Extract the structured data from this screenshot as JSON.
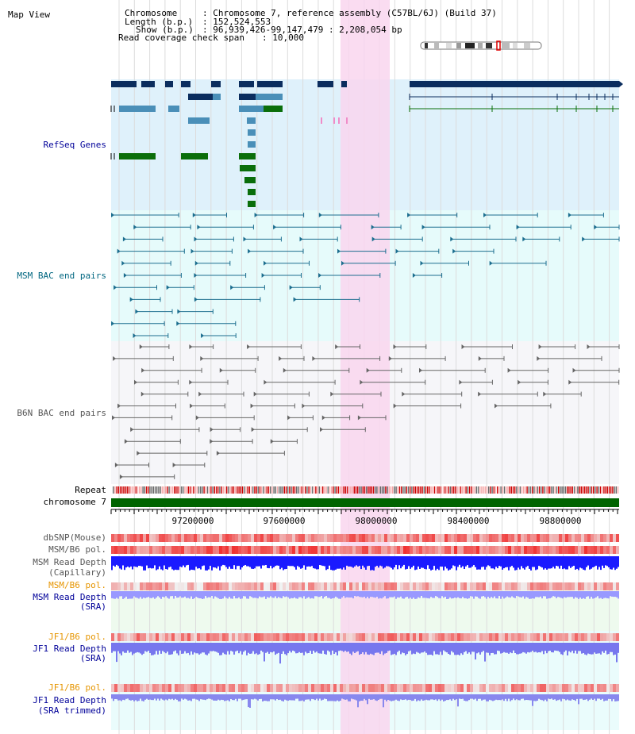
{
  "view_title": "Map View",
  "info": {
    "chromosome_label": "Chromosome",
    "chromosome_value": ": Chromosome 7, reference assembly (C57BL/6J) (Build 37)",
    "length_label": "Length (b.p.)",
    "length_value": ": 152,524,553",
    "show_label": "Show (b.p.)",
    "show_value": ": 96,939,426-99,147,479 : 2,208,054 bp",
    "coverage_label": "Read coverage check span",
    "coverage_value": ": 10,000"
  },
  "tracks": {
    "refseq": "RefSeq Genes",
    "msm_bac": "MSM BAC end pairs",
    "b6n_bac": "B6N BAC end pairs",
    "repeat": "Repeat",
    "chromosome": "chromosome 7",
    "dbsnp": "dbSNP(Mouse)",
    "msm_b6_pol": "MSM/B6 pol.",
    "msm_depth_cap_1": "MSM Read Depth",
    "msm_depth_cap_2": "(Capillary)",
    "msm_b6_pol_2": "MSM/B6 pol.",
    "msm_depth_sra_1": "MSM Read Depth",
    "msm_depth_sra_2": "(SRA)",
    "jf1_b6_pol": "JF1/B6 pol.",
    "jf1_depth_sra_1": "JF1 Read Depth",
    "jf1_depth_sra_2": "(SRA)",
    "jf1_b6_pol_2": "JF1/B6 pol.",
    "jf1_depth_trim_1": "JF1 Read Depth",
    "jf1_depth_trim_2": "(SRA trimmed)"
  },
  "axis_ticks": [
    "97200000",
    "97600000",
    "98000000",
    "98400000",
    "98800000"
  ],
  "colors": {
    "refseq_dark": "#0b2d5e",
    "refseq_mid": "#4a8fb8",
    "refseq_green": "#0a6e0a",
    "msm_bac": "#1c6e8f",
    "b6n_bac": "#666666",
    "highlight": "#f9d6ef",
    "chrom_bar": "#006400",
    "label_blue": "#000099",
    "label_orange": "#e69500",
    "label_teal": "#006680"
  }
}
